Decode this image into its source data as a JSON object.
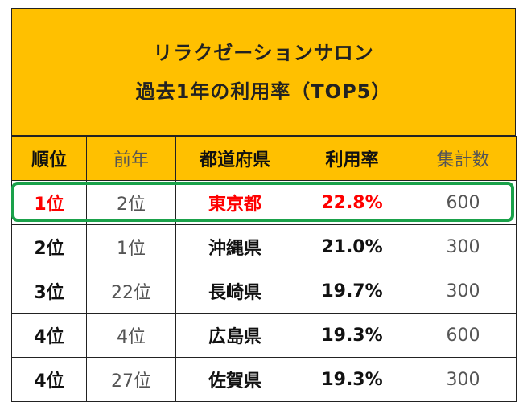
{
  "title": {
    "line1": "リラクゼーションサロン",
    "line2": "過去1年の利用率（TOP5）"
  },
  "table": {
    "headers": [
      "順位",
      "前年",
      "都道府県",
      "利用率",
      "集計数"
    ],
    "rows": [
      {
        "rank": "1位",
        "prev": "2位",
        "pref": "東京都",
        "rate": "22.8%",
        "count": "600"
      },
      {
        "rank": "2位",
        "prev": "1位",
        "pref": "沖縄県",
        "rate": "21.0%",
        "count": "300"
      },
      {
        "rank": "3位",
        "prev": "22位",
        "pref": "長崎県",
        "rate": "19.7%",
        "count": "300"
      },
      {
        "rank": "4位",
        "prev": "4位",
        "pref": "広島県",
        "rate": "19.3%",
        "count": "600"
      },
      {
        "rank": "4位",
        "prev": "27位",
        "pref": "佐賀県",
        "rate": "19.3%",
        "count": "300"
      }
    ]
  },
  "colors": {
    "header_bg": "#ffc000",
    "highlight_text": "#ff0000",
    "highlight_border": "#1aa14a"
  }
}
